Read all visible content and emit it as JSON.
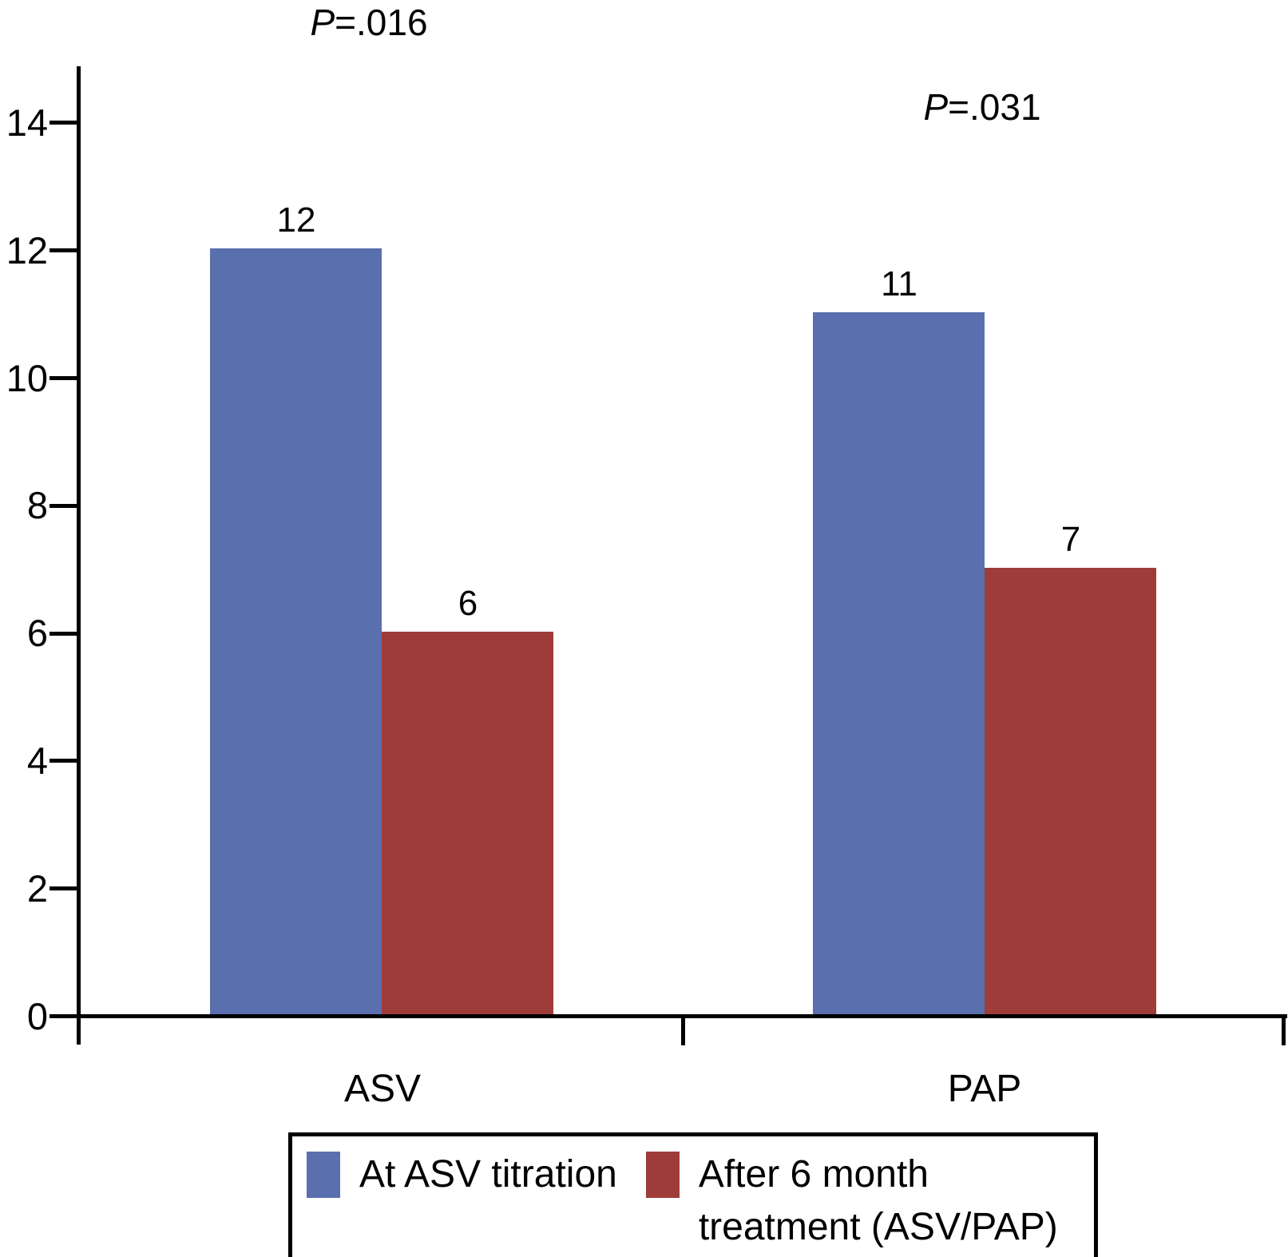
{
  "figure": {
    "background_color": "#ffffff",
    "axis_color": "#000000",
    "text_color": "#000000"
  },
  "chart_data": {
    "type": "bar",
    "categories": [
      "ASV",
      "PAP"
    ],
    "series": [
      {
        "name": "At ASV titration",
        "color": "#5a6fae",
        "values": [
          12,
          11
        ]
      },
      {
        "name": "After 6 month treatment (ASV/PAP)",
        "color": "#9e3c39",
        "values": [
          6,
          7
        ]
      }
    ],
    "value_labels": [
      [
        "12",
        "6"
      ],
      [
        "11",
        "7"
      ]
    ],
    "p_values": [
      {
        "symbol": "P",
        "text": "=.016",
        "category": "ASV"
      },
      {
        "symbol": "P",
        "text": "=.031",
        "category": "PAP"
      }
    ],
    "title": "",
    "xlabel": "",
    "ylabel": "",
    "ylim": [
      0,
      14
    ],
    "yticks": [
      "0",
      "2",
      "4",
      "6",
      "8",
      "10",
      "12",
      "14"
    ],
    "grid": false,
    "legend_position": "bottom",
    "legend": [
      {
        "lines": [
          "At ASV titration"
        ],
        "color": "#5a6fae"
      },
      {
        "lines": [
          "After 6 month",
          "treatment (ASV/PAP)"
        ],
        "color": "#9e3c39"
      }
    ]
  }
}
